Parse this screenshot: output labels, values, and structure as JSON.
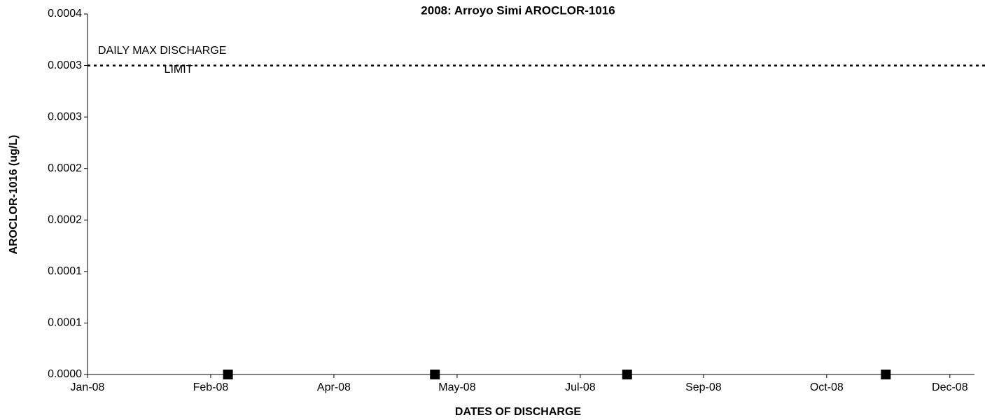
{
  "chart_data": {
    "type": "scatter",
    "title": "2008: Arroyo Simi AROCLOR-1016",
    "xlabel": "DATES OF DISCHARGE",
    "ylabel": "AROCLOR-1016 (ug/L)",
    "x": [
      "2008-02-27",
      "2008-05-21",
      "2008-08-07",
      "2008-11-20"
    ],
    "series": [
      {
        "color": "#000000",
        "marker": "square",
        "values": [
          0,
          0,
          0,
          0
        ]
      }
    ],
    "xlim": [
      "2008-01-01",
      "2008-12-26"
    ],
    "xticks": [
      {
        "value": "2008-01-01",
        "label": "Jan-08"
      },
      {
        "value": "2008-02-20",
        "label": "Feb-08"
      },
      {
        "value": "2008-04-10",
        "label": "Apr-08"
      },
      {
        "value": "2008-05-30",
        "label": "May-08"
      },
      {
        "value": "2008-07-19",
        "label": "Jul-08"
      },
      {
        "value": "2008-09-07",
        "label": "Sep-08"
      },
      {
        "value": "2008-10-27",
        "label": "Oct-08"
      },
      {
        "value": "2008-12-16",
        "label": "Dec-08"
      }
    ],
    "ylim": [
      0,
      0.00035
    ],
    "yticks": [
      {
        "value": 0,
        "label": "0.0000"
      },
      {
        "value": 5e-05,
        "label": "0.0001"
      },
      {
        "value": 0.0001,
        "label": "0.0001"
      },
      {
        "value": 0.00015,
        "label": "0.0002"
      },
      {
        "value": 0.0002,
        "label": "0.0002"
      },
      {
        "value": 0.00025,
        "label": "0.0003"
      },
      {
        "value": 0.0003,
        "label": "0.0003"
      },
      {
        "value": 0.00035,
        "label": "0.0004"
      }
    ],
    "limit": {
      "value": 0.0003,
      "label": [
        "DAILY MAX DISCHARGE",
        "LIMIT"
      ],
      "color": "#000000"
    },
    "grid": false
  }
}
